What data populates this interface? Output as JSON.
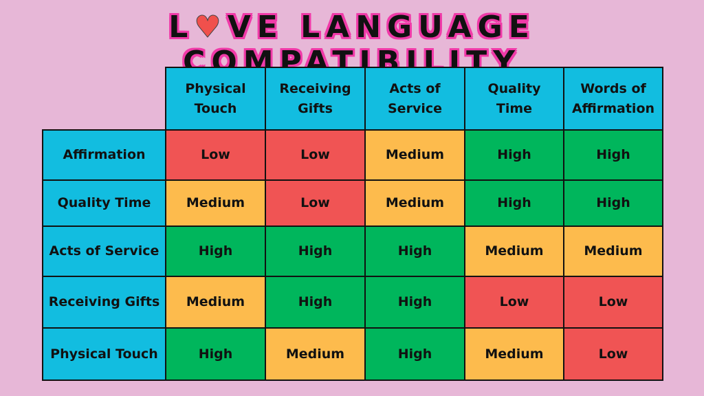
{
  "title": {
    "before": "L",
    "heart": "♥",
    "after": "VE  LANGUAGE COMPATIBILITY"
  },
  "colors": {
    "background": "#e7b7d7",
    "header": "#12bde0",
    "Low": "#f05454",
    "Medium": "#fdbb4d",
    "High": "#00b65c",
    "title_outline": "#f03aa8"
  },
  "chart_data": {
    "type": "table",
    "columns": [
      "Physical Touch",
      "Receiving Gifts",
      "Acts of Service",
      "Quality Time",
      "Words of Affirmation"
    ],
    "rows": [
      {
        "label": "Affirmation",
        "values": [
          "Low",
          "Low",
          "Medium",
          "High",
          "High"
        ]
      },
      {
        "label": "Quality Time",
        "values": [
          "Medium",
          "Low",
          "Medium",
          "High",
          "High"
        ]
      },
      {
        "label": "Acts of Service",
        "values": [
          "High",
          "High",
          "High",
          "Medium",
          "Medium"
        ]
      },
      {
        "label": "Receiving Gifts",
        "values": [
          "Medium",
          "High",
          "High",
          "Low",
          "Low"
        ]
      },
      {
        "label": "Physical Touch",
        "values": [
          "High",
          "Medium",
          "High",
          "Medium",
          "Low"
        ]
      }
    ]
  }
}
